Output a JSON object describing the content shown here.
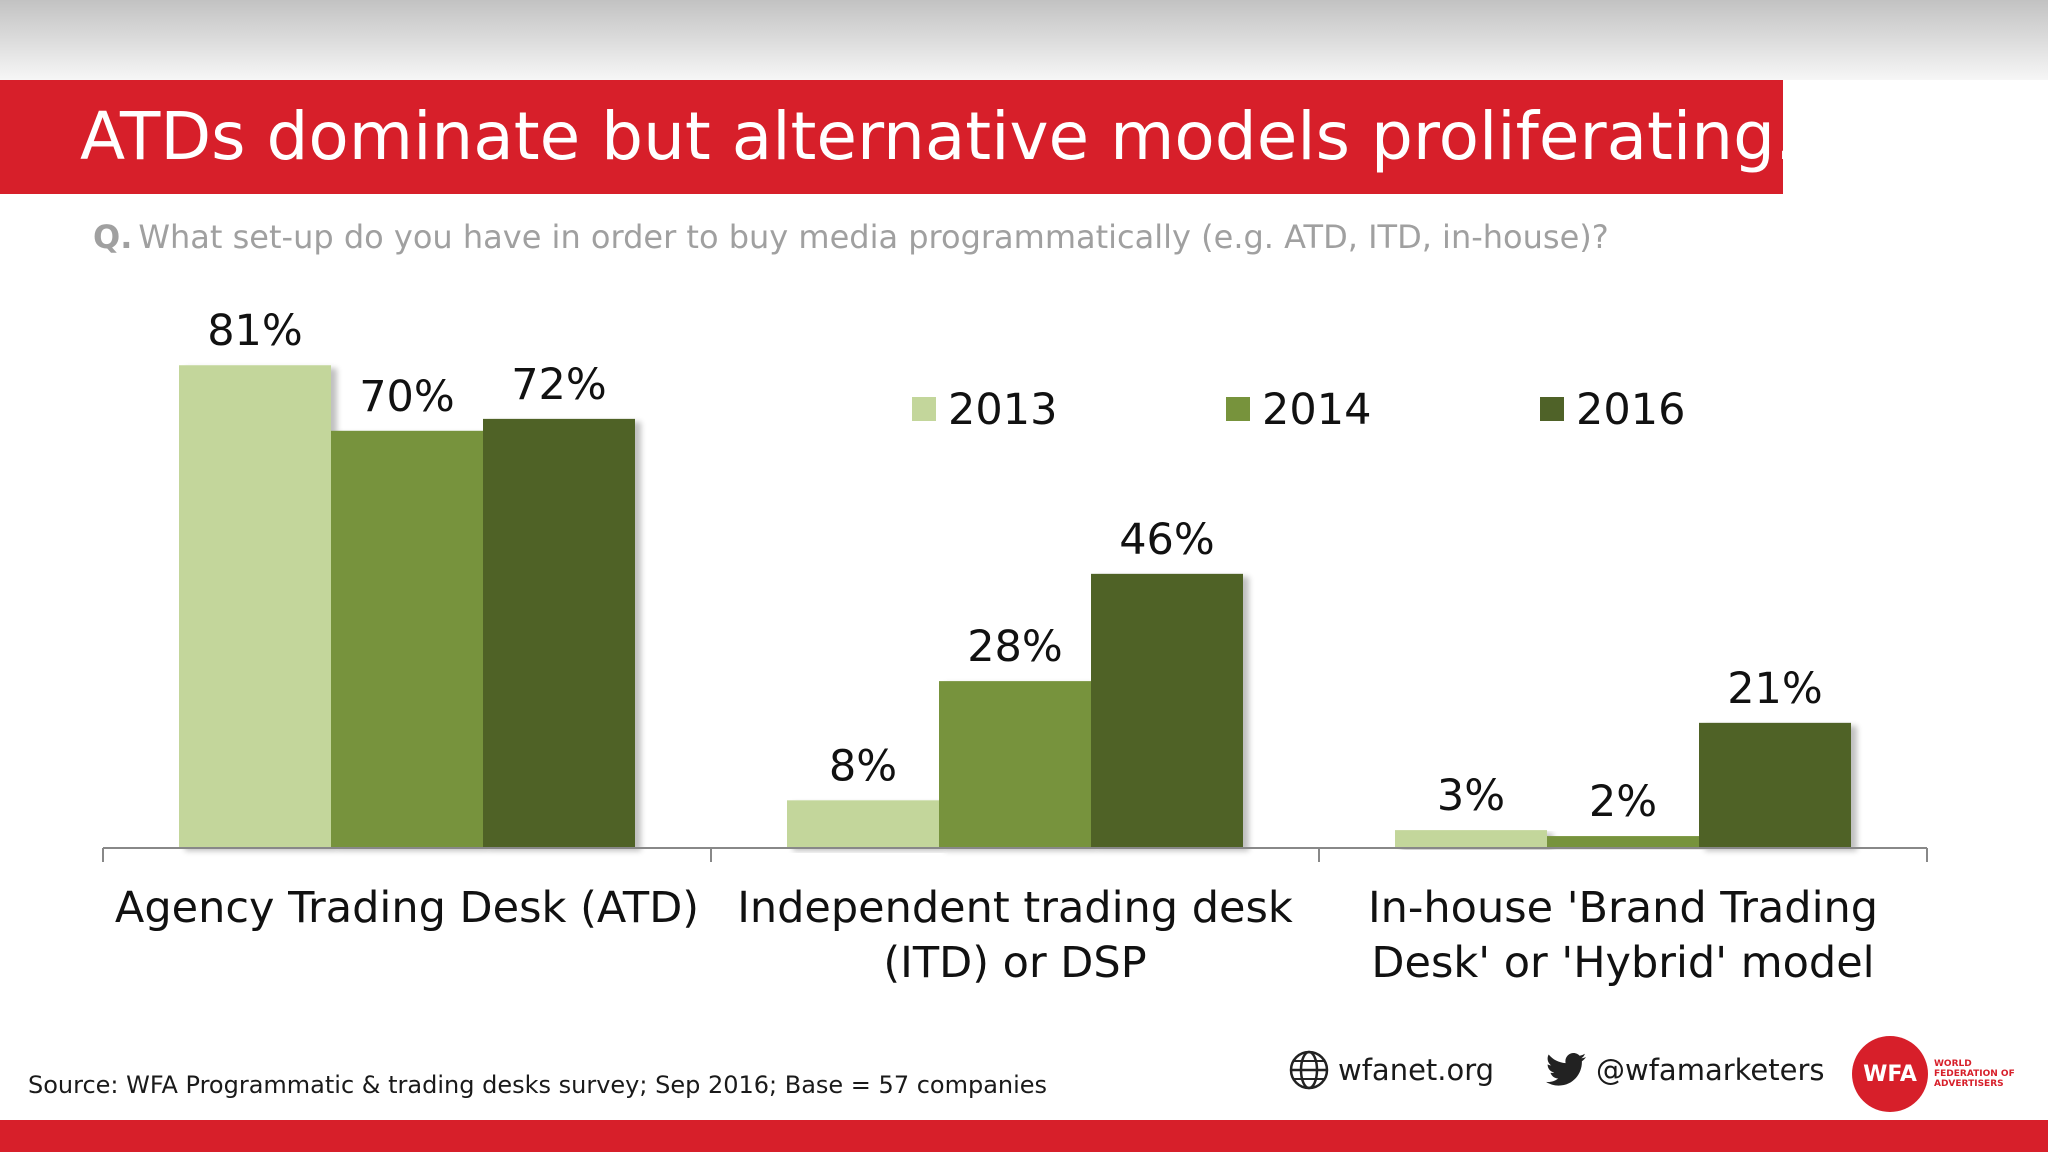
{
  "title": "ATDs dominate but alternative models proliferating...",
  "question": {
    "prefix": "Q.",
    "text": "What set-up do you have in order to buy media programmatically (e.g. ATD, ITD, in-house)?"
  },
  "chart_data": {
    "type": "bar",
    "title": "",
    "xlabel": "",
    "ylabel": "",
    "ylim": [
      0,
      100
    ],
    "grid": false,
    "legend_position": "top-right",
    "categories": [
      [
        "Agency Trading Desk (ATD)"
      ],
      [
        "Independent trading desk",
        "(ITD) or DSP"
      ],
      [
        "In-house 'Brand Trading",
        "Desk' or 'Hybrid' model"
      ]
    ],
    "series": [
      {
        "name": "2013",
        "color": "#c3d69b",
        "values": [
          81,
          8,
          3
        ],
        "labels": [
          "81%",
          "8%",
          "3%"
        ]
      },
      {
        "name": "2014",
        "color": "#77933c",
        "values": [
          70,
          28,
          2
        ],
        "labels": [
          "70%",
          "28%",
          "2%"
        ]
      },
      {
        "name": "2016",
        "color": "#4f6228",
        "values": [
          72,
          46,
          21
        ],
        "labels": [
          "72%",
          "46%",
          "21%"
        ]
      }
    ]
  },
  "footer": {
    "source": "Source: WFA Programmatic & trading desks survey; Sep 2016; Base = 57 companies",
    "website": "wfanet.org",
    "twitter": "@wfamarketers",
    "logo_text": "WFA",
    "logo_subtext": "WORLD FEDERATION OF ADVERTISERS",
    "website_icon": "globe-icon",
    "twitter_icon": "twitter-bird-icon"
  },
  "colors": {
    "brand_red": "#d71f2a",
    "question_gray": "#a0a0a0"
  }
}
